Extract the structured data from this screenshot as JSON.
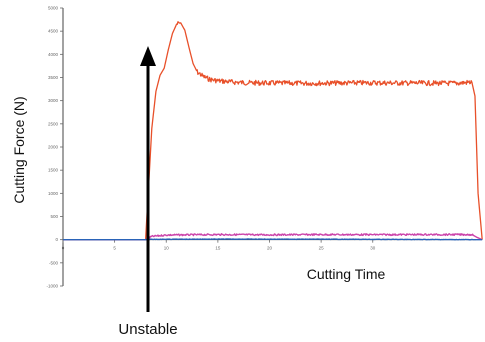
{
  "chart_data": {
    "type": "line",
    "title": "",
    "xlabel": "Cutting Time",
    "ylabel": "Cutting Force (N)",
    "xlim": [
      0,
      40
    ],
    "ylim": [
      -1000,
      5000
    ],
    "x_ticks": [
      "0",
      "5",
      "10",
      "15",
      "20",
      "25",
      "30"
    ],
    "y_ticks": [
      "-1000",
      "-500",
      "0",
      "500",
      "1000",
      "1500",
      "2000",
      "2500",
      "3000",
      "3500",
      "4000",
      "4500",
      "5000"
    ],
    "grid": false,
    "legend": "none",
    "series": [
      {
        "color": "#e8502a",
        "x": [
          0,
          8.0,
          8.3,
          8.6,
          9.0,
          9.4,
          9.8,
          10.2,
          10.6,
          11.0,
          11.4,
          11.8,
          12.2,
          12.6,
          13.0,
          13.6,
          14.2,
          15.0,
          16.5,
          18,
          20,
          23,
          26,
          30,
          34,
          38,
          39.6,
          39.9,
          40.2,
          40.6
        ],
        "y": [
          0,
          0,
          1200,
          2400,
          3200,
          3550,
          3700,
          4100,
          4450,
          4650,
          4680,
          4520,
          4150,
          3800,
          3620,
          3520,
          3460,
          3430,
          3400,
          3385,
          3380,
          3375,
          3380,
          3385,
          3380,
          3375,
          3400,
          3100,
          1000,
          0
        ]
      },
      {
        "color": "#cc44aa",
        "x": [
          0,
          8.0,
          8.6,
          10,
          15,
          20,
          25,
          30,
          35,
          39.6,
          40.1,
          40.6
        ],
        "y": [
          0,
          0,
          70,
          100,
          110,
          105,
          110,
          108,
          110,
          110,
          50,
          0
        ]
      },
      {
        "color": "#2a63b8",
        "x": [
          0,
          8.0,
          8.6,
          15,
          25,
          40.6
        ],
        "y": [
          0,
          0,
          8,
          12,
          10,
          0
        ]
      }
    ],
    "annotations": [
      {
        "text": "Unstable",
        "target": {
          "x": 10.8,
          "y": 4450
        }
      }
    ]
  }
}
